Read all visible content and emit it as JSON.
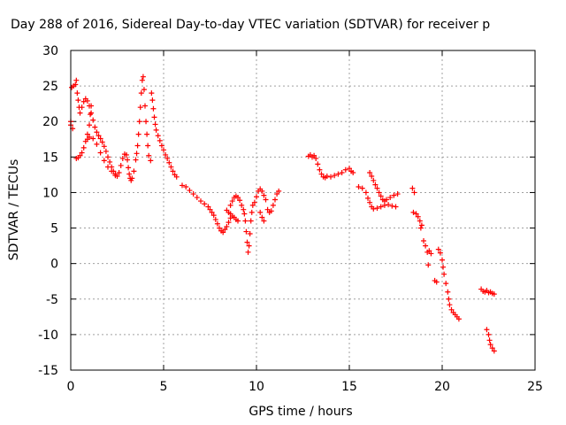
{
  "chart_data": {
    "type": "scatter",
    "title": "Day 288 of 2016, Sidereal Day-to-day VTEC variation (SDTVAR) for receiver p",
    "xlabel": "GPS time / hours",
    "ylabel": "SDTVAR / TECUs",
    "xlim": [
      0,
      25
    ],
    "ylim": [
      -15,
      30
    ],
    "xticks": [
      "0",
      "5",
      "10",
      "15",
      "20",
      "25"
    ],
    "yticks": [
      "-15",
      "-10",
      "-5",
      "0",
      "5",
      "10",
      "15",
      "20",
      "25",
      "30"
    ],
    "grid": true,
    "legend": "none",
    "marker": "+",
    "color": "#ff0000",
    "series": [
      {
        "points": [
          [
            0.0,
            19.5
          ],
          [
            0.0,
            20.0
          ],
          [
            0.05,
            24.8
          ],
          [
            0.1,
            19.0
          ],
          [
            0.15,
            25.0
          ],
          [
            0.25,
            25.2
          ],
          [
            0.3,
            25.8
          ],
          [
            0.35,
            24.0
          ],
          [
            0.4,
            23.0
          ],
          [
            0.45,
            22.0
          ],
          [
            0.3,
            14.8
          ],
          [
            0.4,
            14.9
          ],
          [
            0.5,
            15.2
          ],
          [
            0.6,
            15.6
          ],
          [
            0.7,
            16.3
          ],
          [
            0.8,
            17.2
          ],
          [
            0.9,
            18.2
          ],
          [
            1.0,
            19.5
          ],
          [
            1.05,
            21.0
          ],
          [
            1.1,
            22.2
          ],
          [
            0.5,
            21.2
          ],
          [
            0.6,
            22.0
          ],
          [
            0.7,
            22.8
          ],
          [
            0.8,
            23.2
          ],
          [
            0.9,
            22.9
          ],
          [
            1.0,
            22.2
          ],
          [
            1.1,
            21.2
          ],
          [
            1.2,
            20.2
          ],
          [
            1.3,
            19.2
          ],
          [
            1.4,
            18.5
          ],
          [
            1.5,
            18.0
          ],
          [
            1.6,
            17.6
          ],
          [
            1.7,
            17.1
          ],
          [
            1.8,
            16.5
          ],
          [
            1.9,
            15.8
          ],
          [
            2.0,
            15.0
          ],
          [
            2.1,
            14.3
          ],
          [
            2.2,
            13.6
          ],
          [
            2.3,
            13.0
          ],
          [
            2.4,
            12.6
          ],
          [
            0.9,
            17.5
          ],
          [
            1.0,
            17.8
          ],
          [
            1.2,
            17.6
          ],
          [
            1.4,
            16.8
          ],
          [
            1.6,
            15.6
          ],
          [
            1.8,
            14.5
          ],
          [
            2.0,
            13.6
          ],
          [
            2.2,
            13.0
          ],
          [
            2.4,
            12.4
          ],
          [
            2.5,
            12.3
          ],
          [
            2.6,
            12.8
          ],
          [
            2.7,
            13.8
          ],
          [
            2.8,
            14.8
          ],
          [
            2.9,
            15.4
          ],
          [
            3.0,
            15.3
          ],
          [
            3.05,
            14.6
          ],
          [
            3.1,
            13.5
          ],
          [
            3.15,
            12.6
          ],
          [
            3.2,
            12.0
          ],
          [
            3.25,
            11.7
          ],
          [
            3.3,
            12.0
          ],
          [
            3.4,
            13.0
          ],
          [
            3.5,
            14.6
          ],
          [
            3.55,
            15.5
          ],
          [
            3.6,
            16.6
          ],
          [
            3.65,
            18.2
          ],
          [
            3.7,
            20.0
          ],
          [
            3.75,
            22.0
          ],
          [
            3.8,
            24.0
          ],
          [
            3.85,
            25.8
          ],
          [
            3.9,
            26.3
          ],
          [
            3.95,
            24.5
          ],
          [
            4.0,
            22.2
          ],
          [
            4.05,
            20.0
          ],
          [
            4.1,
            18.2
          ],
          [
            4.15,
            16.6
          ],
          [
            4.2,
            15.2
          ],
          [
            4.3,
            14.5
          ],
          [
            4.35,
            24.0
          ],
          [
            4.4,
            23.0
          ],
          [
            4.45,
            21.8
          ],
          [
            4.5,
            20.6
          ],
          [
            4.55,
            19.6
          ],
          [
            4.6,
            18.8
          ],
          [
            4.7,
            18.0
          ],
          [
            4.8,
            17.3
          ],
          [
            4.9,
            16.6
          ],
          [
            5.0,
            16.0
          ],
          [
            5.1,
            15.3
          ],
          [
            5.2,
            14.8
          ],
          [
            5.3,
            14.2
          ],
          [
            5.4,
            13.6
          ],
          [
            5.5,
            13.0
          ],
          [
            5.6,
            12.5
          ],
          [
            5.7,
            12.2
          ],
          [
            6.0,
            11.0
          ],
          [
            6.2,
            10.8
          ],
          [
            6.4,
            10.3
          ],
          [
            6.6,
            9.8
          ],
          [
            6.8,
            9.3
          ],
          [
            7.0,
            8.8
          ],
          [
            7.2,
            8.4
          ],
          [
            7.4,
            8.0
          ],
          [
            7.5,
            7.6
          ],
          [
            7.6,
            7.2
          ],
          [
            7.7,
            6.8
          ],
          [
            7.8,
            6.2
          ],
          [
            7.9,
            5.6
          ],
          [
            8.0,
            5.0
          ],
          [
            8.1,
            4.6
          ],
          [
            8.2,
            4.4
          ],
          [
            8.3,
            4.8
          ],
          [
            8.4,
            5.2
          ],
          [
            8.5,
            5.8
          ],
          [
            8.6,
            6.4
          ],
          [
            8.6,
            8.2
          ],
          [
            8.7,
            8.8
          ],
          [
            8.8,
            9.3
          ],
          [
            8.9,
            9.5
          ],
          [
            9.0,
            9.3
          ],
          [
            9.1,
            8.9
          ],
          [
            9.2,
            8.2
          ],
          [
            9.3,
            7.6
          ],
          [
            9.35,
            7.0
          ],
          [
            8.4,
            7.5
          ],
          [
            8.5,
            7.2
          ],
          [
            8.6,
            7.0
          ],
          [
            8.7,
            6.7
          ],
          [
            8.8,
            6.5
          ],
          [
            8.9,
            6.2
          ],
          [
            9.0,
            6.0
          ],
          [
            9.4,
            6.0
          ],
          [
            9.45,
            4.5
          ],
          [
            9.5,
            3.0
          ],
          [
            9.55,
            1.6
          ],
          [
            9.6,
            2.5
          ],
          [
            9.65,
            4.2
          ],
          [
            9.7,
            6.0
          ],
          [
            9.75,
            7.2
          ],
          [
            9.8,
            8.2
          ],
          [
            9.9,
            8.6
          ],
          [
            10.0,
            9.4
          ],
          [
            10.1,
            10.2
          ],
          [
            10.2,
            10.5
          ],
          [
            10.3,
            10.2
          ],
          [
            10.4,
            9.6
          ],
          [
            10.5,
            9.0
          ],
          [
            10.2,
            7.2
          ],
          [
            10.3,
            6.5
          ],
          [
            10.4,
            6.0
          ],
          [
            10.6,
            7.6
          ],
          [
            10.7,
            7.2
          ],
          [
            10.8,
            7.4
          ],
          [
            10.9,
            8.2
          ],
          [
            11.0,
            9.0
          ],
          [
            11.1,
            9.8
          ],
          [
            11.2,
            10.2
          ],
          [
            12.8,
            15.1
          ],
          [
            12.9,
            15.3
          ],
          [
            13.0,
            15.0
          ],
          [
            13.1,
            15.2
          ],
          [
            13.2,
            14.8
          ],
          [
            13.3,
            14.0
          ],
          [
            13.4,
            13.2
          ],
          [
            13.5,
            12.6
          ],
          [
            13.6,
            12.2
          ],
          [
            13.7,
            12.1
          ],
          [
            13.8,
            12.3
          ],
          [
            14.0,
            12.2
          ],
          [
            14.2,
            12.4
          ],
          [
            14.4,
            12.6
          ],
          [
            14.6,
            12.8
          ],
          [
            14.8,
            13.2
          ],
          [
            15.0,
            13.4
          ],
          [
            15.1,
            13.0
          ],
          [
            15.2,
            12.8
          ],
          [
            15.5,
            10.8
          ],
          [
            15.7,
            10.6
          ],
          [
            15.9,
            10.0
          ],
          [
            16.0,
            9.2
          ],
          [
            16.1,
            8.6
          ],
          [
            16.2,
            8.0
          ],
          [
            16.3,
            7.7
          ],
          [
            16.5,
            7.8
          ],
          [
            16.7,
            8.0
          ],
          [
            16.9,
            8.2
          ],
          [
            17.1,
            8.3
          ],
          [
            17.3,
            8.1
          ],
          [
            17.5,
            8.0
          ],
          [
            16.1,
            12.8
          ],
          [
            16.2,
            12.3
          ],
          [
            16.3,
            11.7
          ],
          [
            16.4,
            11.1
          ],
          [
            16.5,
            10.6
          ],
          [
            16.6,
            10.0
          ],
          [
            16.7,
            9.5
          ],
          [
            16.8,
            9.0
          ],
          [
            16.9,
            8.8
          ],
          [
            17.0,
            9.0
          ],
          [
            17.2,
            9.3
          ],
          [
            17.4,
            9.6
          ],
          [
            17.6,
            9.8
          ],
          [
            18.4,
            10.6
          ],
          [
            18.5,
            10.0
          ],
          [
            18.45,
            7.2
          ],
          [
            18.6,
            7.0
          ],
          [
            18.7,
            6.6
          ],
          [
            18.8,
            6.0
          ],
          [
            18.9,
            5.4
          ],
          [
            18.85,
            5.0
          ],
          [
            19.0,
            3.2
          ],
          [
            19.1,
            2.5
          ],
          [
            19.2,
            1.6
          ],
          [
            19.3,
            1.8
          ],
          [
            19.25,
            -0.2
          ],
          [
            19.4,
            1.4
          ],
          [
            19.6,
            -2.4
          ],
          [
            19.7,
            -2.6
          ],
          [
            19.8,
            2.0
          ],
          [
            19.9,
            1.5
          ],
          [
            20.0,
            0.5
          ],
          [
            20.05,
            -0.5
          ],
          [
            20.1,
            -1.5
          ],
          [
            20.2,
            -2.8
          ],
          [
            20.3,
            -4.0
          ],
          [
            20.35,
            -5.0
          ],
          [
            20.4,
            -5.8
          ],
          [
            20.5,
            -6.5
          ],
          [
            20.6,
            -6.9
          ],
          [
            20.7,
            -7.2
          ],
          [
            20.8,
            -7.5
          ],
          [
            20.9,
            -7.8
          ],
          [
            22.1,
            -3.6
          ],
          [
            22.2,
            -3.9
          ],
          [
            22.3,
            -4.0
          ],
          [
            22.4,
            -3.8
          ],
          [
            22.5,
            -4.1
          ],
          [
            22.6,
            -4.0
          ],
          [
            22.7,
            -4.2
          ],
          [
            22.8,
            -4.3
          ],
          [
            22.4,
            -9.3
          ],
          [
            22.5,
            -10.0
          ],
          [
            22.55,
            -10.8
          ],
          [
            22.6,
            -11.4
          ],
          [
            22.7,
            -11.9
          ],
          [
            22.8,
            -12.3
          ]
        ]
      }
    ]
  }
}
